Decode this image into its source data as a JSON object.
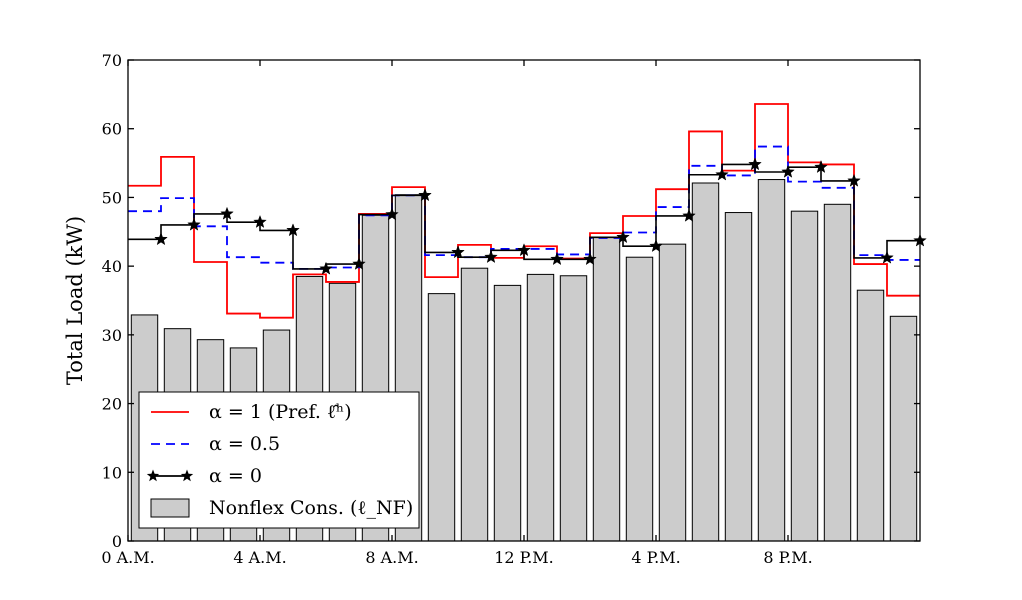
{
  "chart_data": {
    "type": "bar",
    "title": "",
    "ylabel": "Total Load (kW)",
    "xlabel": "",
    "xlim": [
      0,
      24
    ],
    "ylim": [
      0,
      70
    ],
    "yticks": [
      0,
      10,
      20,
      30,
      40,
      50,
      60,
      70
    ],
    "xticks": [
      {
        "hour": 0,
        "label": "0 A.M."
      },
      {
        "hour": 4,
        "label": "4 A.M."
      },
      {
        "hour": 8,
        "label": "8 A.M."
      },
      {
        "hour": 12,
        "label": "12 P.M."
      },
      {
        "hour": 16,
        "label": "4 P.M."
      },
      {
        "hour": 20,
        "label": "8 P.M."
      }
    ],
    "hours": [
      0,
      1,
      2,
      3,
      4,
      5,
      6,
      7,
      8,
      9,
      10,
      11,
      12,
      13,
      14,
      15,
      16,
      17,
      18,
      19,
      20,
      21,
      22,
      23
    ],
    "series": [
      {
        "name": "Nonflex Cons. (ℓ_NF)",
        "kind": "bar",
        "color": "#cccccc",
        "values": [
          32.9,
          30.9,
          29.3,
          28.1,
          30.7,
          38.5,
          37.5,
          47.4,
          50.4,
          36.0,
          39.7,
          37.2,
          38.8,
          38.6,
          44.2,
          41.3,
          43.2,
          52.1,
          47.8,
          52.6,
          48.0,
          49.0,
          36.5,
          32.7
        ]
      },
      {
        "name": "α = 1 (Pref. ℓ̂ʰ)",
        "kind": "step",
        "color": "#ff0000",
        "dash": "",
        "values": [
          51.7,
          55.9,
          40.6,
          33.1,
          32.5,
          38.8,
          37.7,
          47.6,
          51.5,
          38.4,
          43.1,
          41.2,
          42.9,
          41.1,
          44.8,
          47.3,
          51.2,
          59.6,
          53.9,
          63.6,
          55.1,
          54.8,
          40.3,
          35.7
        ]
      },
      {
        "name": "α = 0.5",
        "kind": "step",
        "color": "#0000ff",
        "dash": "9,6",
        "values": [
          48.0,
          49.9,
          45.8,
          41.3,
          40.5,
          39.6,
          39.8,
          47.4,
          50.3,
          41.6,
          41.3,
          42.5,
          42.5,
          41.7,
          44.1,
          44.9,
          48.6,
          54.6,
          53.2,
          57.4,
          52.3,
          51.4,
          41.6,
          40.9
        ]
      },
      {
        "name": "α = 0",
        "kind": "step-marker",
        "color": "#000000",
        "dash": "",
        "marker": "star",
        "values": [
          43.9,
          46.0,
          47.6,
          46.4,
          45.2,
          39.6,
          40.3,
          47.5,
          50.3,
          42.0,
          41.3,
          42.3,
          41.0,
          41.0,
          44.2,
          42.9,
          47.3,
          53.3,
          54.8,
          53.7,
          54.4,
          52.4,
          41.2,
          43.7
        ]
      }
    ],
    "legend": {
      "placement": "lower-left",
      "entries": [
        "α = 1 (Pref. ℓ̂ʰ)",
        "α = 0.5",
        "α = 0",
        "Nonflex Cons. (ℓ_NF)"
      ]
    }
  }
}
